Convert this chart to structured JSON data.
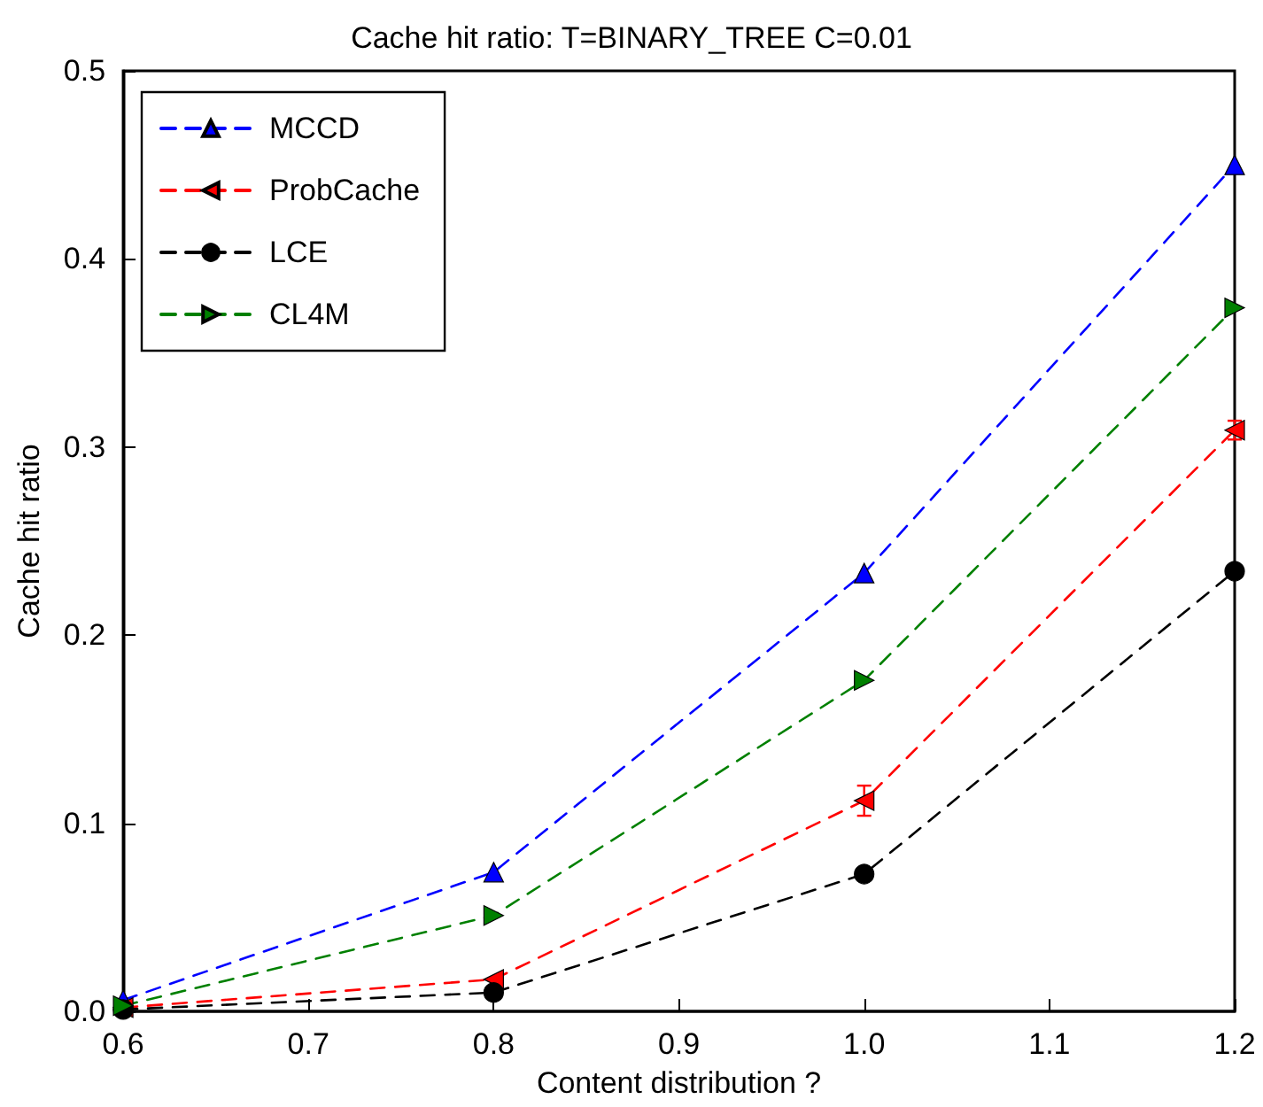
{
  "chart_data": {
    "type": "line",
    "title": "Cache hit ratio: T=BINARY_TREE C=0.01",
    "xlabel": "Content distribution ?",
    "ylabel": "Cache hit ratio",
    "x": [
      0.6,
      0.8,
      1.0,
      1.2
    ],
    "xlim": [
      0.6,
      1.2
    ],
    "xticks": [
      0.6,
      0.7,
      0.8,
      0.9,
      {
        "value": 1.0,
        "label": "1.0"
      },
      1.1,
      1.2
    ],
    "ylim": [
      0,
      0.5
    ],
    "yticks": [
      {
        "value": 0,
        "label": "0.0"
      },
      0.1,
      0.2,
      0.3,
      0.4,
      0.5
    ],
    "legend": "top left",
    "grid": false,
    "line_style": "dashed",
    "series": [
      {
        "name": "MCCD",
        "color": "#0000ff",
        "marker": "triangle",
        "values": [
          0.006,
          0.074,
          0.233,
          0.45
        ]
      },
      {
        "name": "ProbCache",
        "color": "#ff0000",
        "marker": "triangle-left",
        "values": [
          0.002,
          0.017,
          0.112,
          0.309
        ],
        "errors": [
          null,
          null,
          0.008,
          0.005
        ]
      },
      {
        "name": "LCE",
        "color": "#000000",
        "marker": "circle",
        "values": [
          0.001,
          0.01,
          0.073,
          0.234
        ]
      },
      {
        "name": "CL4M",
        "color": "#008000",
        "marker": "triangle-right",
        "values": [
          0.003,
          0.051,
          0.176,
          0.374
        ]
      }
    ]
  }
}
